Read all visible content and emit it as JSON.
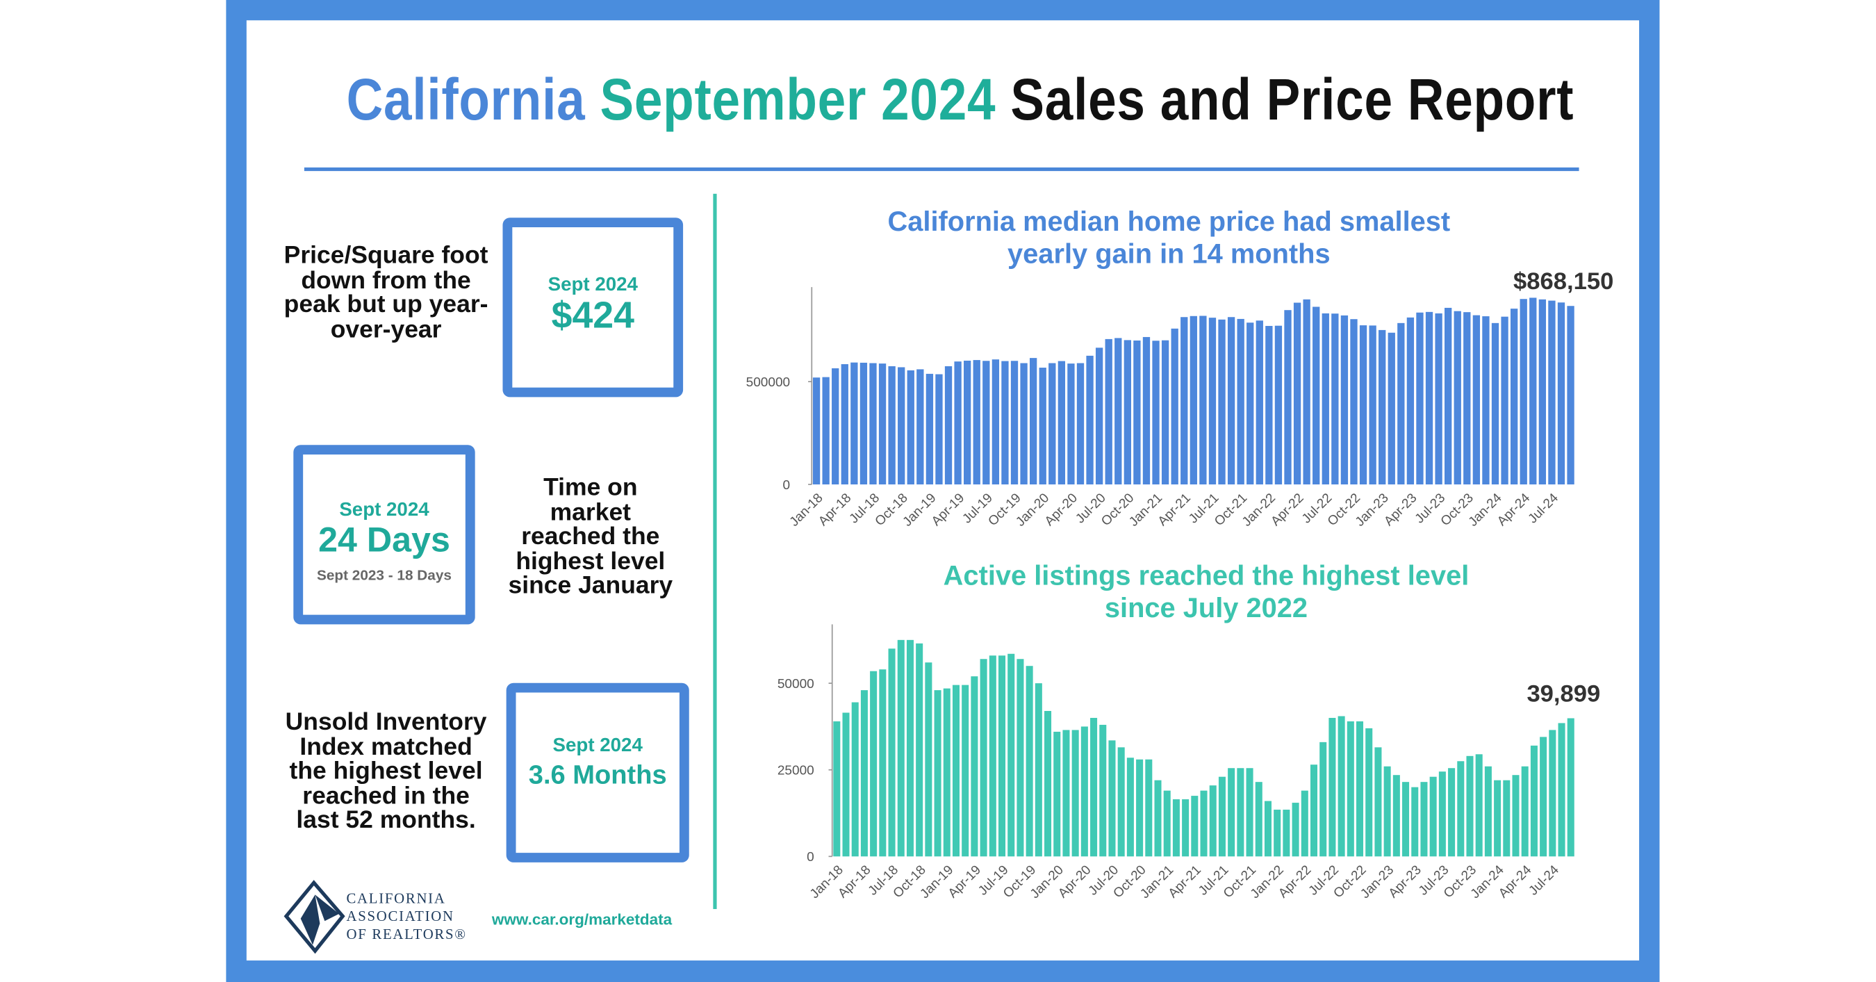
{
  "header": {
    "title_parts": [
      "California",
      "September 2024",
      "Sales and Price Report"
    ]
  },
  "panels": [
    {
      "text": "Price/Square foot down from the peak but up year-over-year",
      "box_label": "Sept 2024",
      "box_value": "$424"
    },
    {
      "text": "Time on market reached the highest level since January",
      "box_label": "Sept 2024",
      "box_value": "24 Days",
      "box_note": "Sept 2023 - 18 Days"
    },
    {
      "text": "Unsold Inventory Index matched the highest level reached in the last 52 months.",
      "box_label": "Sept 2024",
      "box_value": "3.6 Months"
    }
  ],
  "footer": {
    "logo_lines": [
      "CALIFORNIA",
      "ASSOCIATION",
      "OF REALTORS®"
    ],
    "url": "www.car.org/marketdata"
  },
  "chart_data": [
    {
      "type": "bar",
      "title": "California median home price had smallest yearly gain in 14 months",
      "color": "#4d87dc",
      "categories": [
        "Jan-18",
        null,
        null,
        "Apr-18",
        null,
        null,
        "Jul-18",
        null,
        null,
        "Oct-18",
        null,
        null,
        "Jan-19",
        null,
        null,
        "Apr-19",
        null,
        null,
        "Jul-19",
        null,
        null,
        "Oct-19",
        null,
        null,
        "Jan-20",
        null,
        null,
        "Apr-20",
        null,
        null,
        "Jul-20",
        null,
        null,
        "Oct-20",
        null,
        null,
        "Jan-21",
        null,
        null,
        "Apr-21",
        null,
        null,
        "Jul-21",
        null,
        null,
        "Oct-21",
        null,
        null,
        "Jan-22",
        null,
        null,
        "Apr-22",
        null,
        null,
        "Jul-22",
        null,
        null,
        "Oct-22",
        null,
        null,
        "Jan-23",
        null,
        null,
        "Apr-23",
        null,
        null,
        "Jul-23",
        null,
        null,
        "Oct-23",
        null,
        null,
        "Jan-24",
        null,
        null,
        "Apr-24",
        null,
        null,
        "Jul-24",
        null,
        null
      ],
      "values": [
        520000,
        522000,
        565000,
        585000,
        593000,
        592000,
        590000,
        588000,
        575000,
        570000,
        555000,
        560000,
        538000,
        536000,
        575000,
        598000,
        602000,
        605000,
        601000,
        608000,
        600000,
        601000,
        590000,
        615000,
        568000,
        590000,
        600000,
        588000,
        590000,
        626000,
        665000,
        707000,
        712000,
        702000,
        700000,
        717000,
        699000,
        701000,
        758000,
        814000,
        819000,
        820000,
        811000,
        802000,
        814000,
        805000,
        787000,
        797000,
        771000,
        772000,
        848000,
        884000,
        900000,
        864000,
        832000,
        831000,
        822000,
        804000,
        774000,
        773000,
        751000,
        738000,
        785000,
        812000,
        836000,
        839000,
        832000,
        859000,
        843000,
        838000,
        823000,
        818000,
        785000,
        816000,
        855000,
        902000,
        908000,
        900000,
        894000,
        885000,
        868150
      ],
      "value_labels": [
        null,
        null,
        null,
        null,
        null,
        null,
        null,
        null,
        null,
        null,
        null,
        null,
        null,
        null,
        null,
        null,
        null,
        null,
        null,
        null,
        null,
        null,
        null,
        null,
        null,
        null,
        null,
        null,
        null,
        null,
        null,
        null,
        null,
        null,
        null,
        null,
        null,
        null,
        null,
        null,
        null,
        null,
        null,
        null,
        null,
        null,
        null,
        null,
        null,
        null,
        null,
        null,
        null,
        null,
        null,
        null,
        null,
        null,
        null,
        null,
        null,
        null,
        null,
        null,
        null,
        null,
        null,
        null,
        null,
        null,
        null,
        null,
        null,
        null,
        null,
        null,
        null,
        null,
        null,
        null,
        "$868,150"
      ],
      "ylim": [
        0,
        960000
      ],
      "yticks": [
        0,
        500000
      ],
      "grid": false
    },
    {
      "type": "bar",
      "title": "Active listings reached the highest level since July 2022",
      "color": "#40c9b4",
      "categories": [
        "Jan-18",
        null,
        null,
        "Apr-18",
        null,
        null,
        "Jul-18",
        null,
        null,
        "Oct-18",
        null,
        null,
        "Jan-19",
        null,
        null,
        "Apr-19",
        null,
        null,
        "Jul-19",
        null,
        null,
        "Oct-19",
        null,
        null,
        "Jan-20",
        null,
        null,
        "Apr-20",
        null,
        null,
        "Jul-20",
        null,
        null,
        "Oct-20",
        null,
        null,
        "Jan-21",
        null,
        null,
        "Apr-21",
        null,
        null,
        "Jul-21",
        null,
        null,
        "Oct-21",
        null,
        null,
        "Jan-22",
        null,
        null,
        "Apr-22",
        null,
        null,
        "Jul-22",
        null,
        null,
        "Oct-22",
        null,
        null,
        "Jan-23",
        null,
        null,
        "Apr-23",
        null,
        null,
        "Jul-23",
        null,
        null,
        "Oct-23",
        null,
        null,
        "Jan-24",
        null,
        null,
        "Apr-24",
        null,
        null,
        "Jul-24",
        null,
        null
      ],
      "values": [
        39000,
        41500,
        44500,
        48000,
        53500,
        54000,
        60000,
        62500,
        62500,
        61500,
        56000,
        48000,
        48500,
        49500,
        49500,
        52000,
        57000,
        58000,
        58000,
        58500,
        57000,
        55000,
        50000,
        42000,
        36000,
        36500,
        36500,
        37500,
        40000,
        38000,
        33500,
        31500,
        28500,
        28000,
        28000,
        22000,
        19000,
        16500,
        16500,
        17500,
        19000,
        20500,
        23000,
        25500,
        25500,
        25500,
        21500,
        16000,
        13500,
        13500,
        15500,
        19000,
        26500,
        33000,
        40000,
        40500,
        39000,
        39000,
        37000,
        31500,
        26000,
        23500,
        21500,
        20000,
        21500,
        23000,
        24500,
        25500,
        27500,
        29000,
        29500,
        26000,
        22000,
        22000,
        23500,
        26000,
        32000,
        34500,
        36500,
        38500,
        39899
      ],
      "value_labels": [
        null,
        null,
        null,
        null,
        null,
        null,
        null,
        null,
        null,
        null,
        null,
        null,
        null,
        null,
        null,
        null,
        null,
        null,
        null,
        null,
        null,
        null,
        null,
        null,
        null,
        null,
        null,
        null,
        null,
        null,
        null,
        null,
        null,
        null,
        null,
        null,
        null,
        null,
        null,
        null,
        null,
        null,
        null,
        null,
        null,
        null,
        null,
        null,
        null,
        null,
        null,
        null,
        null,
        null,
        null,
        null,
        null,
        null,
        null,
        null,
        null,
        null,
        null,
        null,
        null,
        null,
        null,
        null,
        null,
        null,
        null,
        null,
        null,
        null,
        null,
        null,
        null,
        null,
        null,
        null,
        "39,899"
      ],
      "ylim": [
        0,
        67000
      ],
      "yticks": [
        0,
        25000,
        50000
      ],
      "grid": false
    }
  ]
}
